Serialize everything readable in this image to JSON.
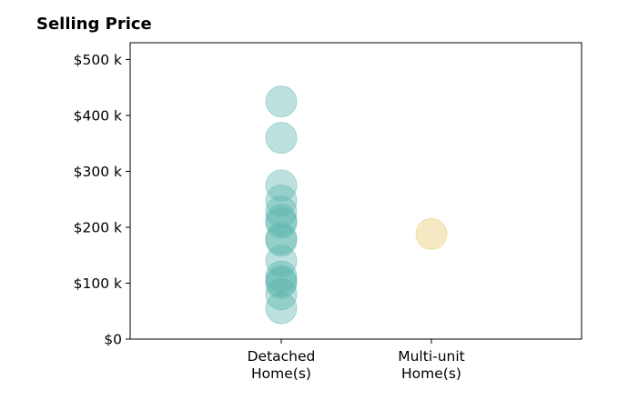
{
  "chart_data": {
    "type": "scatter",
    "title": "Selling Price",
    "xlabel": "",
    "ylabel": "",
    "categories": [
      "Detached\nHome(s)",
      "Multi-unit\nHome(s)"
    ],
    "ylim": [
      0,
      530000
    ],
    "yticks": [
      {
        "value": 0,
        "label": "$0"
      },
      {
        "value": 100000,
        "label": "$100 k"
      },
      {
        "value": 200000,
        "label": "$200 k"
      },
      {
        "value": 300000,
        "label": "$300 k"
      },
      {
        "value": 400000,
        "label": "$400 k"
      },
      {
        "value": 500000,
        "label": "$500 k"
      }
    ],
    "grid": false,
    "series": [
      {
        "category": "Detached\nHome(s)",
        "color": "#5ab4ac",
        "values": [
          425000,
          360000,
          275000,
          248000,
          228000,
          213000,
          208000,
          180000,
          176000,
          140000,
          112000,
          104000,
          100000,
          80000,
          55000
        ]
      },
      {
        "category": "Multi-unit\nHome(s)",
        "color": "#e8c56a",
        "values": [
          188000
        ]
      }
    ]
  }
}
